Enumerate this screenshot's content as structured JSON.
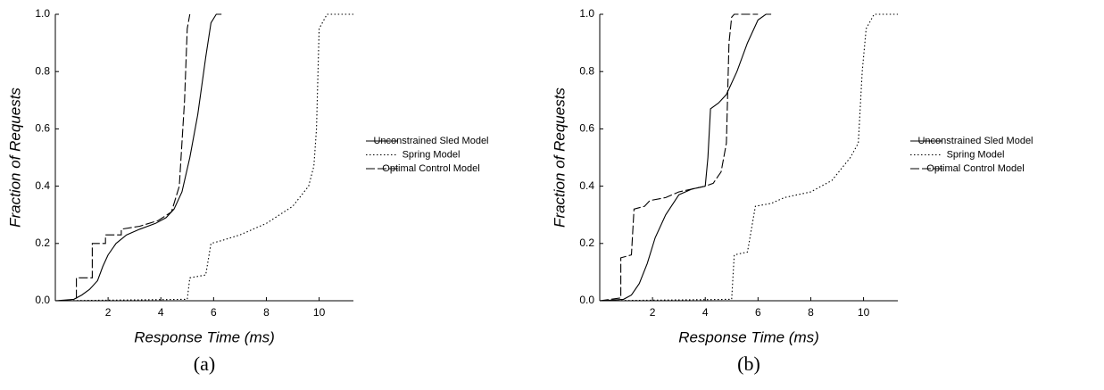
{
  "chart_data": [
    {
      "type": "line",
      "caption": "(a)",
      "x_label": "Response Time (ms)",
      "y_label": "Fraction of Requests",
      "xlim": [
        0,
        11.3
      ],
      "ylim": [
        0,
        1
      ],
      "xticks": [
        2,
        4,
        6,
        8,
        10
      ],
      "yticks": [
        {
          "value": 0,
          "label": "0.0"
        },
        {
          "value": 0.2,
          "label": "0.2"
        },
        {
          "value": 0.4,
          "label": "0.4"
        },
        {
          "value": 0.6,
          "label": "0.6"
        },
        {
          "value": 0.8,
          "label": "0.8"
        },
        {
          "value": 1,
          "label": "1.0"
        }
      ],
      "series": [
        {
          "name": "Unconstrained Sled Model",
          "color": "#000000",
          "line_style": "solid",
          "x": [
            0,
            0.7,
            1.0,
            1.3,
            1.6,
            1.8,
            2.0,
            2.3,
            2.7,
            3.2,
            3.8,
            4.2,
            4.5,
            4.8,
            5.1,
            5.4,
            5.7,
            5.9,
            6.1,
            6.3
          ],
          "values": [
            0,
            0.005,
            0.02,
            0.04,
            0.07,
            0.12,
            0.16,
            0.2,
            0.23,
            0.25,
            0.27,
            0.29,
            0.32,
            0.38,
            0.5,
            0.65,
            0.85,
            0.97,
            1.0,
            1.0
          ]
        },
        {
          "name": "Spring Model",
          "color": "#000000",
          "line_style": "dotted",
          "x": [
            0,
            5.0,
            5.1,
            5.7,
            5.9,
            6.3,
            7,
            8,
            9,
            9.6,
            9.8,
            9.9,
            10.0,
            10.3,
            11.3
          ],
          "values": [
            0,
            0.005,
            0.08,
            0.09,
            0.2,
            0.21,
            0.23,
            0.27,
            0.33,
            0.4,
            0.47,
            0.6,
            0.95,
            1.0,
            1.0
          ]
        },
        {
          "name": "Optimal Control Model",
          "color": "#000000",
          "line_style": "dashed",
          "x": [
            0,
            0.8,
            0.8,
            1.4,
            1.4,
            1.9,
            1.9,
            2.5,
            2.5,
            3.2,
            3.9,
            4.4,
            4.7,
            4.9,
            5.0,
            5.1
          ],
          "values": [
            0,
            0,
            0.08,
            0.08,
            0.2,
            0.2,
            0.23,
            0.23,
            0.25,
            0.26,
            0.28,
            0.31,
            0.4,
            0.7,
            0.95,
            1.0
          ]
        }
      ]
    },
    {
      "type": "line",
      "caption": "(b)",
      "x_label": "Response Time (ms)",
      "y_label": "Fraction of Requests",
      "xlim": [
        0,
        11.3
      ],
      "ylim": [
        0,
        1
      ],
      "xticks": [
        2,
        4,
        6,
        8,
        10
      ],
      "yticks": [
        {
          "value": 0,
          "label": "0.0"
        },
        {
          "value": 0.2,
          "label": "0.2"
        },
        {
          "value": 0.4,
          "label": "0.4"
        },
        {
          "value": 0.6,
          "label": "0.6"
        },
        {
          "value": 0.8,
          "label": "0.8"
        },
        {
          "value": 1,
          "label": "1.0"
        }
      ],
      "series": [
        {
          "name": "Unconstrained Sled Model",
          "color": "#000000",
          "line_style": "solid",
          "x": [
            0,
            0.9,
            1.2,
            1.5,
            1.8,
            2.1,
            2.5,
            3,
            3.5,
            4,
            4.1,
            4.2,
            4.5,
            4.8,
            5.2,
            5.6,
            6,
            6.3,
            6.5
          ],
          "values": [
            0,
            0.005,
            0.02,
            0.06,
            0.13,
            0.22,
            0.3,
            0.37,
            0.39,
            0.4,
            0.5,
            0.67,
            0.69,
            0.72,
            0.8,
            0.9,
            0.98,
            1.0,
            1.0
          ]
        },
        {
          "name": "Spring Model",
          "color": "#000000",
          "line_style": "dotted",
          "x": [
            0,
            5.0,
            5.1,
            5.6,
            5.9,
            6.5,
            7,
            8,
            8.8,
            9.5,
            9.8,
            9.95,
            10.1,
            10.4,
            11.3
          ],
          "values": [
            0,
            0.005,
            0.16,
            0.17,
            0.33,
            0.34,
            0.36,
            0.38,
            0.42,
            0.5,
            0.55,
            0.8,
            0.95,
            1.0,
            1.0
          ]
        },
        {
          "name": "Optimal Control Model",
          "color": "#000000",
          "line_style": "dashed",
          "x": [
            0,
            0.8,
            0.8,
            1.2,
            1.3,
            1.7,
            1.9,
            2.5,
            3,
            3.5,
            4.0,
            4.3,
            4.6,
            4.8,
            4.9,
            5.0,
            5.1,
            6.0
          ],
          "values": [
            0,
            0.01,
            0.15,
            0.16,
            0.32,
            0.33,
            0.35,
            0.36,
            0.38,
            0.39,
            0.4,
            0.41,
            0.45,
            0.55,
            0.9,
            0.99,
            1.0,
            1.0
          ]
        }
      ]
    }
  ]
}
